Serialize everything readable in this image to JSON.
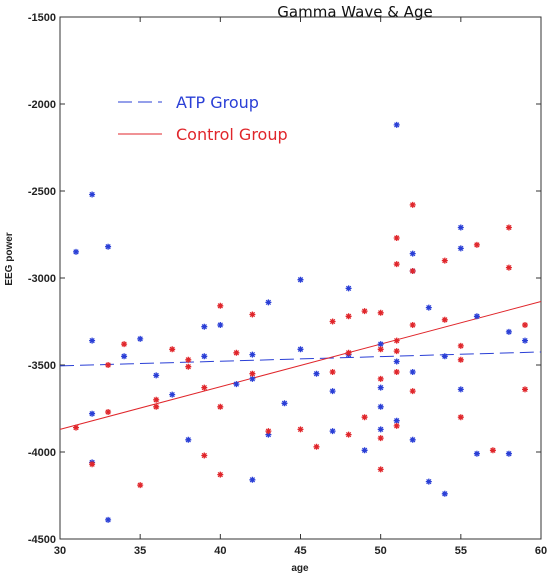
{
  "chart_data": {
    "type": "scatter",
    "title": "Gamma Wave & Age",
    "xlabel": "age",
    "ylabel": "EEG power",
    "xlim": [
      30,
      60
    ],
    "ylim": [
      -4500,
      -1500
    ],
    "xticks": [
      "30",
      "35",
      "40",
      "45",
      "50",
      "55",
      "60"
    ],
    "yticks": [
      "-1500",
      "-2000",
      "-2500",
      "-3000",
      "-3500",
      "-4000",
      "-4500"
    ],
    "grid": false,
    "legend_position": "upper-left",
    "series": [
      {
        "name": "ATP Group",
        "color": "#2a3fd6",
        "marker": "asterisk",
        "fit_line": {
          "style": "dashed",
          "x": [
            30,
            60
          ],
          "y": [
            -3505,
            -3425
          ]
        },
        "points": [
          [
            31,
            -2850
          ],
          [
            32,
            -2520
          ],
          [
            32,
            -3360
          ],
          [
            32,
            -3780
          ],
          [
            32,
            -4060
          ],
          [
            33,
            -2820
          ],
          [
            33,
            -4390
          ],
          [
            34,
            -3450
          ],
          [
            35,
            -3350
          ],
          [
            36,
            -3560
          ],
          [
            37,
            -3670
          ],
          [
            38,
            -3930
          ],
          [
            39,
            -3280
          ],
          [
            39,
            -3450
          ],
          [
            40,
            -3270
          ],
          [
            41,
            -3610
          ],
          [
            42,
            -3440
          ],
          [
            42,
            -3580
          ],
          [
            42,
            -4160
          ],
          [
            43,
            -3140
          ],
          [
            43,
            -3900
          ],
          [
            44,
            -3720
          ],
          [
            45,
            -3010
          ],
          [
            45,
            -3410
          ],
          [
            46,
            -3550
          ],
          [
            47,
            -3650
          ],
          [
            47,
            -3880
          ],
          [
            48,
            -3060
          ],
          [
            48,
            -3440
          ],
          [
            49,
            -3990
          ],
          [
            50,
            -3380
          ],
          [
            50,
            -3630
          ],
          [
            50,
            -3740
          ],
          [
            50,
            -3870
          ],
          [
            51,
            -2120
          ],
          [
            51,
            -3480
          ],
          [
            51,
            -3820
          ],
          [
            52,
            -2860
          ],
          [
            52,
            -2960
          ],
          [
            52,
            -3540
          ],
          [
            52,
            -3930
          ],
          [
            53,
            -3170
          ],
          [
            53,
            -4170
          ],
          [
            54,
            -3450
          ],
          [
            54,
            -4240
          ],
          [
            55,
            -2710
          ],
          [
            55,
            -2830
          ],
          [
            55,
            -3640
          ],
          [
            56,
            -3220
          ],
          [
            56,
            -4010
          ],
          [
            58,
            -3310
          ],
          [
            58,
            -4010
          ],
          [
            59,
            -3360
          ]
        ]
      },
      {
        "name": "Control Group",
        "color": "#e0262b",
        "marker": "asterisk",
        "fit_line": {
          "style": "solid",
          "x": [
            30,
            60
          ],
          "y": [
            -3870,
            -3135
          ]
        },
        "points": [
          [
            31,
            -3860
          ],
          [
            32,
            -4070
          ],
          [
            33,
            -3500
          ],
          [
            33,
            -3770
          ],
          [
            34,
            -3380
          ],
          [
            35,
            -4190
          ],
          [
            36,
            -3700
          ],
          [
            36,
            -3740
          ],
          [
            37,
            -3410
          ],
          [
            38,
            -3470
          ],
          [
            38,
            -3510
          ],
          [
            39,
            -3630
          ],
          [
            39,
            -4020
          ],
          [
            40,
            -3160
          ],
          [
            40,
            -3740
          ],
          [
            40,
            -4130
          ],
          [
            41,
            -3430
          ],
          [
            42,
            -3210
          ],
          [
            42,
            -3550
          ],
          [
            43,
            -3880
          ],
          [
            45,
            -3870
          ],
          [
            46,
            -3970
          ],
          [
            47,
            -3250
          ],
          [
            47,
            -3540
          ],
          [
            48,
            -3220
          ],
          [
            48,
            -3430
          ],
          [
            48,
            -3900
          ],
          [
            49,
            -3190
          ],
          [
            49,
            -3800
          ],
          [
            50,
            -3200
          ],
          [
            50,
            -3410
          ],
          [
            50,
            -3580
          ],
          [
            50,
            -3920
          ],
          [
            50,
            -4100
          ],
          [
            51,
            -2770
          ],
          [
            51,
            -2920
          ],
          [
            51,
            -3360
          ],
          [
            51,
            -3420
          ],
          [
            51,
            -3540
          ],
          [
            51,
            -3850
          ],
          [
            52,
            -2580
          ],
          [
            52,
            -2960
          ],
          [
            52,
            -3270
          ],
          [
            52,
            -3650
          ],
          [
            54,
            -2900
          ],
          [
            54,
            -3240
          ],
          [
            55,
            -3390
          ],
          [
            55,
            -3470
          ],
          [
            55,
            -3800
          ],
          [
            56,
            -2810
          ],
          [
            57,
            -3990
          ],
          [
            58,
            -2710
          ],
          [
            58,
            -2940
          ],
          [
            59,
            -3270
          ],
          [
            59,
            -3640
          ]
        ]
      }
    ]
  }
}
